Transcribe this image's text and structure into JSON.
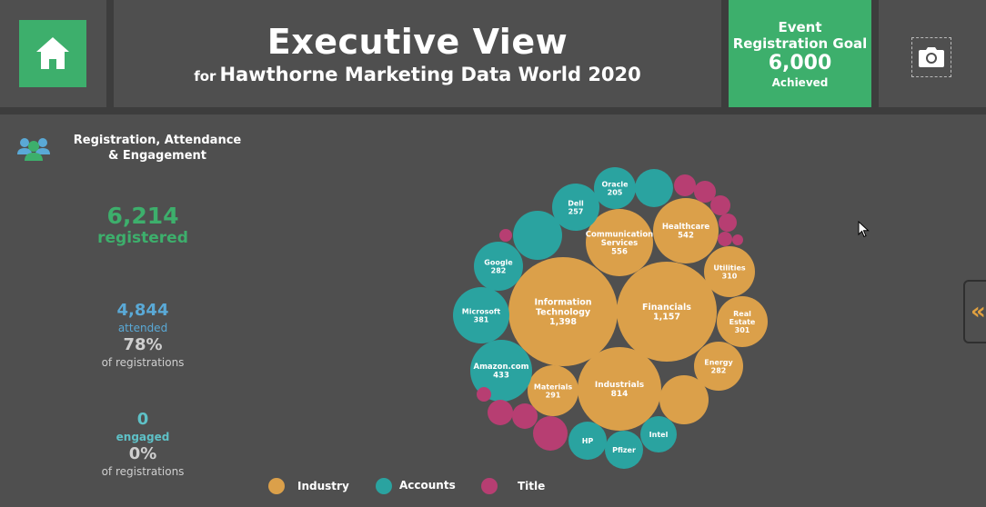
{
  "header": {
    "title": "Executive View",
    "subtitle_prefix": "for",
    "subtitle": "Hawthorne Marketing Data World 2020",
    "home_icon": "home-icon",
    "camera_icon": "camera-icon"
  },
  "goal": {
    "line1": "Event",
    "line2": "Registration Goal",
    "value": "6,000",
    "status": "Achieved"
  },
  "section": {
    "title": "Registration, Attendance & Engagement",
    "icon": "users-icon"
  },
  "kpis": {
    "registered_value": "6,214",
    "registered_label": "registered",
    "attended_value": "4,844",
    "attended_label": "attended",
    "attended_pct": "78%",
    "attended_pct_label": "of registrations",
    "engaged_value": "0",
    "engaged_label": "engaged",
    "engaged_pct": "0%",
    "engaged_pct_label": "of registrations"
  },
  "colors": {
    "industry": "#dba04a",
    "accounts": "#2aa3a0",
    "title": "#b73e72",
    "green": "#3daf6c"
  },
  "legend": [
    {
      "label": "Industry",
      "color": "#dba04a"
    },
    {
      "label": "Accounts",
      "color": "#2aa3a0"
    },
    {
      "label": "Title",
      "color": "#b73e72"
    }
  ],
  "bubbles": [
    {
      "cat": "industry",
      "name": "Information Technology",
      "value": "1,398"
    },
    {
      "cat": "industry",
      "name": "Financials",
      "value": "1,157"
    },
    {
      "cat": "industry",
      "name": "Industrials",
      "value": "814"
    },
    {
      "cat": "industry",
      "name": "Communication Services",
      "value": "556"
    },
    {
      "cat": "industry",
      "name": "Healthcare",
      "value": "542"
    },
    {
      "cat": "industry",
      "name": "Utilities",
      "value": "310"
    },
    {
      "cat": "industry",
      "name": "Real Estate",
      "value": "301"
    },
    {
      "cat": "industry",
      "name": "Materials",
      "value": "291"
    },
    {
      "cat": "industry",
      "name": "Energy",
      "value": "282"
    },
    {
      "cat": "industry",
      "name": "",
      "value": ""
    },
    {
      "cat": "accounts",
      "name": "Amazon.com",
      "value": "433"
    },
    {
      "cat": "accounts",
      "name": "Microsoft",
      "value": "381"
    },
    {
      "cat": "accounts",
      "name": "Google",
      "value": "282"
    },
    {
      "cat": "accounts",
      "name": "Dell",
      "value": "257"
    },
    {
      "cat": "accounts",
      "name": "Oracle",
      "value": "205"
    },
    {
      "cat": "accounts",
      "name": "HP",
      "value": ""
    },
    {
      "cat": "accounts",
      "name": "Pfizer",
      "value": ""
    },
    {
      "cat": "accounts",
      "name": "Intel",
      "value": ""
    },
    {
      "cat": "accounts",
      "name": "",
      "value": ""
    },
    {
      "cat": "accounts",
      "name": "",
      "value": ""
    },
    {
      "cat": "title",
      "name": "",
      "value": ""
    },
    {
      "cat": "title",
      "name": "",
      "value": ""
    },
    {
      "cat": "title",
      "name": "",
      "value": ""
    },
    {
      "cat": "title",
      "name": "",
      "value": ""
    },
    {
      "cat": "title",
      "name": "",
      "value": ""
    },
    {
      "cat": "title",
      "name": "",
      "value": ""
    },
    {
      "cat": "title",
      "name": "",
      "value": ""
    },
    {
      "cat": "title",
      "name": "",
      "value": ""
    },
    {
      "cat": "title",
      "name": "",
      "value": ""
    },
    {
      "cat": "title",
      "name": "",
      "value": ""
    },
    {
      "cat": "title",
      "name": "",
      "value": ""
    }
  ],
  "side_tab": {
    "label": "«"
  }
}
